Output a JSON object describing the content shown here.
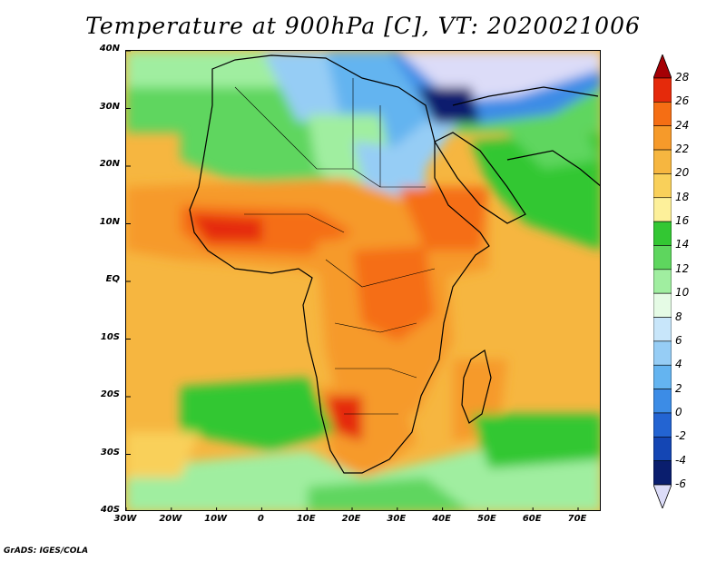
{
  "title": "Temperature at 900hPa [C], VT: 2020021006",
  "credit": "GrADS: IGES/COLA",
  "map": {
    "lat_labels": [
      "40N",
      "30N",
      "20N",
      "10N",
      "EQ",
      "10S",
      "20S",
      "30S",
      "40S"
    ],
    "lon_labels": [
      "30W",
      "20W",
      "10W",
      "0",
      "10E",
      "20E",
      "30E",
      "40E",
      "50E",
      "60E",
      "70E"
    ]
  },
  "colorbar": {
    "labels": [
      "28",
      "26",
      "24",
      "22",
      "20",
      "18",
      "16",
      "14",
      "12",
      "10",
      "8",
      "6",
      "4",
      "2",
      "0",
      "-2",
      "-4",
      "-6"
    ],
    "colors": [
      "#a50005",
      "#e52a0b",
      "#f56e14",
      "#f69a2a",
      "#f6b640",
      "#f9d05a",
      "#fdf09a",
      "#33c733",
      "#5ed65e",
      "#a0eea0",
      "#e5fbe5",
      "#c8e6fa",
      "#96cdf5",
      "#64b4f0",
      "#3c8ce6",
      "#2364d2",
      "#1446b4",
      "#0a1e6e",
      "#dcdcf8"
    ]
  }
}
